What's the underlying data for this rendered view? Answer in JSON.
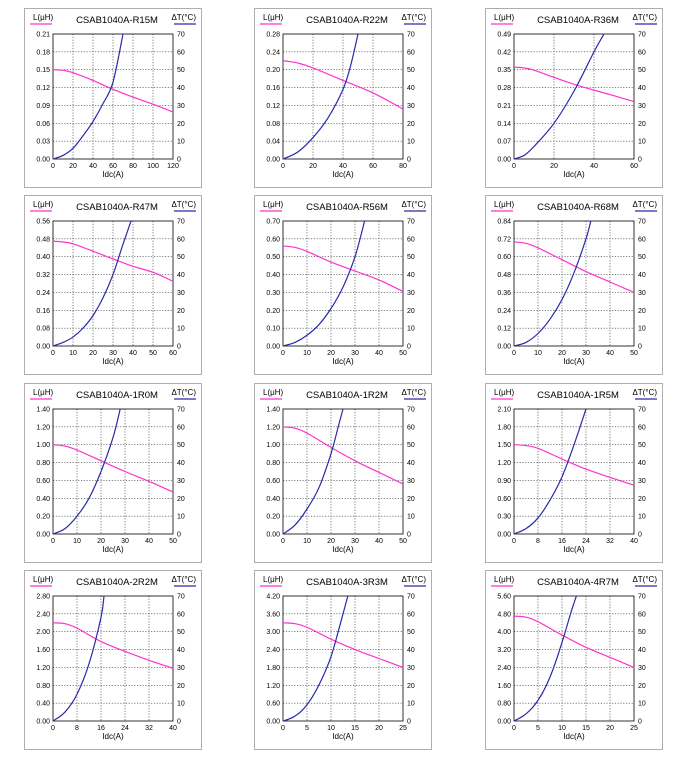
{
  "colors": {
    "inductance": "#ff33cc",
    "temperature": "#2a2aa8",
    "grid": "#000000"
  },
  "chart_data": [
    {
      "type": "line",
      "title": "CSAB1040A-R15M",
      "xlabel": "Idc(A)",
      "ylabel_left": "L(μH)",
      "ylabel_right": "ΔT(°C)",
      "xlim": [
        0,
        120
      ],
      "ylim_left": [
        0,
        0.21
      ],
      "ylim_right": [
        0,
        70
      ],
      "xticks": [
        "0",
        "20",
        "40",
        "60",
        "80",
        "100",
        "120"
      ],
      "yticks_left": [
        "0.00",
        "0.03",
        "0.06",
        "0.09",
        "0.12",
        "0.15",
        "0.18",
        "0.21"
      ],
      "yticks_right": [
        "0",
        "10",
        "20",
        "30",
        "40",
        "50",
        "60",
        "70"
      ],
      "series": [
        {
          "axis": "left",
          "x": [
            0,
            10,
            20,
            40,
            60,
            80,
            100,
            120
          ],
          "y": [
            0.15,
            0.149,
            0.145,
            0.132,
            0.117,
            0.104,
            0.092,
            0.079
          ]
        },
        {
          "axis": "right",
          "x": [
            0,
            10,
            20,
            30,
            40,
            50,
            60,
            70
          ],
          "y": [
            0,
            2,
            6,
            13,
            21,
            31,
            43,
            70
          ]
        }
      ]
    },
    {
      "type": "line",
      "title": "CSAB1040A-R22M",
      "xlabel": "Idc(A)",
      "ylabel_left": "L(μH)",
      "ylabel_right": "ΔT(°C)",
      "xlim": [
        0,
        80
      ],
      "ylim_left": [
        0,
        0.28
      ],
      "ylim_right": [
        0,
        70
      ],
      "xticks": [
        "0",
        "20",
        "40",
        "60",
        "80"
      ],
      "yticks_left": [
        "0.00",
        "0.04",
        "0.08",
        "0.12",
        "0.16",
        "0.20",
        "0.24",
        "0.28"
      ],
      "yticks_right": [
        "0",
        "10",
        "20",
        "30",
        "40",
        "50",
        "60",
        "70"
      ],
      "series": [
        {
          "axis": "left",
          "x": [
            0,
            5,
            10,
            20,
            40,
            60,
            80
          ],
          "y": [
            0.22,
            0.218,
            0.215,
            0.204,
            0.176,
            0.148,
            0.112
          ]
        },
        {
          "axis": "right",
          "x": [
            0,
            10,
            20,
            30,
            40,
            45,
            50
          ],
          "y": [
            0,
            4,
            12,
            23,
            39,
            52,
            70
          ]
        }
      ]
    },
    {
      "type": "line",
      "title": "CSAB1040A-R36M",
      "xlabel": "Idc(A)",
      "ylabel_left": "L(μH)",
      "ylabel_right": "ΔT(°C)",
      "xlim": [
        0,
        60
      ],
      "ylim_left": [
        0,
        0.49
      ],
      "ylim_right": [
        0,
        70
      ],
      "xticks": [
        "0",
        "20",
        "40",
        "60"
      ],
      "yticks_left": [
        "0.00",
        "0.07",
        "0.14",
        "0.21",
        "0.28",
        "0.35",
        "0.42",
        "0.49"
      ],
      "yticks_right": [
        "0",
        "10",
        "20",
        "30",
        "40",
        "50",
        "60",
        "70"
      ],
      "series": [
        {
          "axis": "left",
          "x": [
            0,
            5,
            10,
            20,
            30,
            40,
            50,
            60
          ],
          "y": [
            0.36,
            0.357,
            0.348,
            0.32,
            0.293,
            0.27,
            0.248,
            0.225
          ]
        },
        {
          "axis": "right",
          "x": [
            0,
            5,
            10,
            20,
            30,
            40,
            45
          ],
          "y": [
            0,
            2,
            7,
            20,
            38,
            60,
            70
          ]
        }
      ]
    },
    {
      "type": "line",
      "title": "CSAB1040A-R47M",
      "xlabel": "Idc(A)",
      "ylabel_left": "L(μH)",
      "ylabel_right": "ΔT(°C)",
      "xlim": [
        0,
        60
      ],
      "ylim_left": [
        0,
        0.56
      ],
      "ylim_right": [
        0,
        70
      ],
      "xticks": [
        "0",
        "10",
        "20",
        "30",
        "40",
        "50",
        "60"
      ],
      "yticks_left": [
        "0.00",
        "0.08",
        "0.16",
        "0.24",
        "0.32",
        "0.40",
        "0.48",
        "0.56"
      ],
      "yticks_right": [
        "0",
        "10",
        "20",
        "30",
        "40",
        "50",
        "60",
        "70"
      ],
      "series": [
        {
          "axis": "left",
          "x": [
            0,
            5,
            10,
            20,
            30,
            40,
            50,
            60
          ],
          "y": [
            0.47,
            0.466,
            0.458,
            0.425,
            0.39,
            0.357,
            0.33,
            0.29
          ]
        },
        {
          "axis": "right",
          "x": [
            0,
            5,
            10,
            15,
            20,
            25,
            30,
            35,
            39
          ],
          "y": [
            0,
            2,
            5,
            10,
            17,
            27,
            40,
            57,
            70
          ]
        }
      ]
    },
    {
      "type": "line",
      "title": "CSAB1040A-R56M",
      "xlabel": "Idc(A)",
      "ylabel_left": "L(μH)",
      "ylabel_right": "ΔT(°C)",
      "xlim": [
        0,
        50
      ],
      "ylim_left": [
        0,
        0.7
      ],
      "ylim_right": [
        0,
        70
      ],
      "xticks": [
        "0",
        "10",
        "20",
        "30",
        "40",
        "50"
      ],
      "yticks_left": [
        "0.00",
        "0.10",
        "0.20",
        "0.30",
        "0.40",
        "0.50",
        "0.60",
        "0.70"
      ],
      "yticks_right": [
        "0",
        "10",
        "20",
        "30",
        "40",
        "50",
        "60",
        "70"
      ],
      "series": [
        {
          "axis": "left",
          "x": [
            0,
            5,
            10,
            20,
            30,
            40,
            50
          ],
          "y": [
            0.56,
            0.552,
            0.53,
            0.47,
            0.42,
            0.37,
            0.305
          ]
        },
        {
          "axis": "right",
          "x": [
            0,
            5,
            10,
            15,
            20,
            25,
            30,
            34
          ],
          "y": [
            0,
            2,
            6,
            12,
            21,
            33,
            50,
            70
          ]
        }
      ]
    },
    {
      "type": "line",
      "title": "CSAB1040A-R68M",
      "xlabel": "Idc(A)",
      "ylabel_left": "L(μH)",
      "ylabel_right": "ΔT(°C)",
      "xlim": [
        0,
        50
      ],
      "ylim_left": [
        0,
        0.84
      ],
      "ylim_right": [
        0,
        70
      ],
      "xticks": [
        "0",
        "10",
        "20",
        "30",
        "40",
        "50"
      ],
      "yticks_left": [
        "0.00",
        "0.12",
        "0.24",
        "0.36",
        "0.48",
        "0.60",
        "0.72",
        "0.84"
      ],
      "yticks_right": [
        "0",
        "10",
        "20",
        "30",
        "40",
        "50",
        "60",
        "70"
      ],
      "series": [
        {
          "axis": "left",
          "x": [
            0,
            5,
            10,
            20,
            30,
            40,
            50
          ],
          "y": [
            0.7,
            0.69,
            0.66,
            0.58,
            0.5,
            0.43,
            0.36
          ]
        },
        {
          "axis": "right",
          "x": [
            0,
            5,
            10,
            15,
            20,
            25,
            30,
            32
          ],
          "y": [
            0,
            2,
            7,
            15,
            26,
            41,
            60,
            70
          ]
        }
      ]
    },
    {
      "type": "line",
      "title": "CSAB1040A-1R0M",
      "xlabel": "Idc(A)",
      "ylabel_left": "L(μH)",
      "ylabel_right": "ΔT(°C)",
      "xlim": [
        0,
        50
      ],
      "ylim_left": [
        0,
        1.4
      ],
      "ylim_right": [
        0,
        70
      ],
      "xticks": [
        "0",
        "10",
        "20",
        "30",
        "40",
        "50"
      ],
      "yticks_left": [
        "0.00",
        "0.20",
        "0.40",
        "0.60",
        "0.80",
        "1.00",
        "1.20",
        "1.40"
      ],
      "yticks_right": [
        "0",
        "10",
        "20",
        "30",
        "40",
        "50",
        "60",
        "70"
      ],
      "series": [
        {
          "axis": "left",
          "x": [
            0,
            5,
            10,
            20,
            30,
            40,
            50
          ],
          "y": [
            1.0,
            0.985,
            0.94,
            0.82,
            0.7,
            0.59,
            0.47
          ]
        },
        {
          "axis": "right",
          "x": [
            0,
            5,
            10,
            15,
            20,
            25,
            28
          ],
          "y": [
            0,
            3,
            10,
            20,
            35,
            54,
            70
          ]
        }
      ]
    },
    {
      "type": "line",
      "title": "CSAB1040A-1R2M",
      "xlabel": "Idc(A)",
      "ylabel_left": "L(μH)",
      "ylabel_right": "ΔT(°C)",
      "xlim": [
        0,
        50
      ],
      "ylim_left": [
        0,
        1.4
      ],
      "ylim_right": [
        0,
        70
      ],
      "xticks": [
        "0",
        "10",
        "20",
        "30",
        "40",
        "50"
      ],
      "yticks_left": [
        "0.00",
        "0.20",
        "0.40",
        "0.60",
        "0.80",
        "1.00",
        "1.20",
        "1.40"
      ],
      "yticks_right": [
        "0",
        "10",
        "20",
        "30",
        "40",
        "50",
        "60",
        "70"
      ],
      "series": [
        {
          "axis": "left",
          "x": [
            0,
            5,
            10,
            20,
            30,
            40,
            50
          ],
          "y": [
            1.2,
            1.185,
            1.13,
            0.97,
            0.82,
            0.69,
            0.56
          ]
        },
        {
          "axis": "right",
          "x": [
            0,
            5,
            10,
            15,
            20,
            23,
            25
          ],
          "y": [
            0,
            5,
            14,
            26,
            45,
            60,
            70
          ]
        }
      ]
    },
    {
      "type": "line",
      "title": "CSAB1040A-1R5M",
      "xlabel": "Idc(A)",
      "ylabel_left": "L(μH)",
      "ylabel_right": "ΔT(°C)",
      "xlim": [
        0,
        40
      ],
      "ylim_left": [
        0,
        2.1
      ],
      "ylim_right": [
        0,
        70
      ],
      "xticks": [
        "0",
        "8",
        "16",
        "24",
        "32",
        "40"
      ],
      "yticks_left": [
        "0.00",
        "0.30",
        "0.60",
        "0.90",
        "1.20",
        "1.50",
        "1.80",
        "2.10"
      ],
      "yticks_right": [
        "0",
        "10",
        "20",
        "30",
        "40",
        "50",
        "60",
        "70"
      ],
      "series": [
        {
          "axis": "left",
          "x": [
            0,
            4,
            8,
            16,
            24,
            32,
            40
          ],
          "y": [
            1.5,
            1.485,
            1.44,
            1.26,
            1.09,
            0.95,
            0.82
          ]
        },
        {
          "axis": "right",
          "x": [
            0,
            4,
            8,
            12,
            16,
            20,
            24
          ],
          "y": [
            0,
            3,
            9,
            19,
            32,
            50,
            70
          ]
        }
      ]
    },
    {
      "type": "line",
      "title": "CSAB1040A-2R2M",
      "xlabel": "Idc(A)",
      "ylabel_left": "L(μH)",
      "ylabel_right": "ΔT(°C)",
      "xlim": [
        0,
        40
      ],
      "ylim_left": [
        0,
        2.8
      ],
      "ylim_right": [
        0,
        70
      ],
      "xticks": [
        "0",
        "8",
        "16",
        "24",
        "32",
        "40"
      ],
      "yticks_left": [
        "0.00",
        "0.40",
        "0.80",
        "1.20",
        "1.60",
        "2.00",
        "2.40",
        "2.80"
      ],
      "yticks_right": [
        "0",
        "10",
        "20",
        "30",
        "40",
        "50",
        "60",
        "70"
      ],
      "series": [
        {
          "axis": "left",
          "x": [
            0,
            4,
            8,
            16,
            24,
            32,
            40
          ],
          "y": [
            2.2,
            2.18,
            2.08,
            1.78,
            1.56,
            1.36,
            1.18
          ]
        },
        {
          "axis": "right",
          "x": [
            0,
            4,
            8,
            12,
            16,
            17
          ],
          "y": [
            0,
            5,
            15,
            32,
            58,
            70
          ]
        }
      ]
    },
    {
      "type": "line",
      "title": "CSAB1040A-3R3M",
      "xlabel": "Idc(A)",
      "ylabel_left": "L(μH)",
      "ylabel_right": "ΔT(°C)",
      "xlim": [
        0,
        25
      ],
      "ylim_left": [
        0,
        4.2
      ],
      "ylim_right": [
        0,
        70
      ],
      "xticks": [
        "0",
        "5",
        "10",
        "15",
        "20",
        "25"
      ],
      "yticks_left": [
        "0.00",
        "0.60",
        "1.20",
        "1.80",
        "2.40",
        "3.00",
        "3.60",
        "4.20"
      ],
      "yticks_right": [
        "0",
        "10",
        "20",
        "30",
        "40",
        "50",
        "60",
        "70"
      ],
      "series": [
        {
          "axis": "left",
          "x": [
            0,
            2.5,
            5,
            10,
            15,
            20,
            25
          ],
          "y": [
            3.3,
            3.27,
            3.15,
            2.75,
            2.4,
            2.1,
            1.8
          ]
        },
        {
          "axis": "right",
          "x": [
            0,
            2,
            4,
            6,
            8,
            10,
            12,
            13.5
          ],
          "y": [
            0,
            2,
            6,
            13,
            23,
            36,
            55,
            70
          ]
        }
      ]
    },
    {
      "type": "line",
      "title": "CSAB1040A-4R7M",
      "xlabel": "Idc(A)",
      "ylabel_left": "L(μH)",
      "ylabel_right": "ΔT(°C)",
      "xlim": [
        0,
        25
      ],
      "ylim_left": [
        0,
        5.6
      ],
      "ylim_right": [
        0,
        70
      ],
      "xticks": [
        "0",
        "5",
        "10",
        "15",
        "20",
        "25"
      ],
      "yticks_left": [
        "0.00",
        "0.80",
        "1.60",
        "2.40",
        "3.20",
        "4.00",
        "4.80",
        "5.60"
      ],
      "yticks_right": [
        "0",
        "10",
        "20",
        "30",
        "40",
        "50",
        "60",
        "70"
      ],
      "series": [
        {
          "axis": "left",
          "x": [
            0,
            2.5,
            5,
            10,
            15,
            20,
            25
          ],
          "y": [
            4.7,
            4.65,
            4.45,
            3.85,
            3.3,
            2.85,
            2.4
          ]
        },
        {
          "axis": "right",
          "x": [
            0,
            2,
            4,
            6,
            8,
            10,
            12,
            13
          ],
          "y": [
            0,
            3,
            8,
            16,
            28,
            44,
            62,
            70
          ]
        }
      ]
    }
  ]
}
